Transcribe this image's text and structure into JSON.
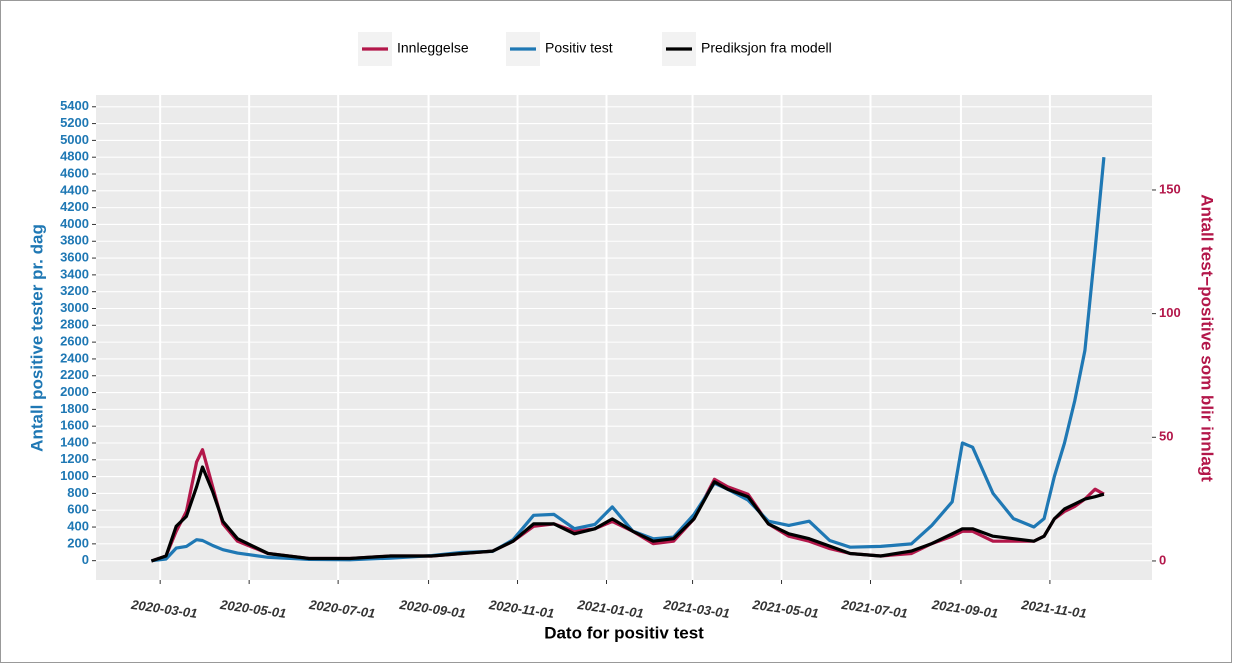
{
  "chart_data": {
    "type": "line",
    "x_label": "Dato for positiv test",
    "y_label": "Antall positive tester pr. dag",
    "y2_label": "Antall test−positive som blir innlagt",
    "legend": "top",
    "grid": true,
    "x": [
      "2020-02-24",
      "2020-03-05",
      "2020-03-12",
      "2020-03-19",
      "2020-03-26",
      "2020-03-30",
      "2020-04-06",
      "2020-04-13",
      "2020-04-23",
      "2020-05-14",
      "2020-06-11",
      "2020-07-09",
      "2020-08-06",
      "2020-09-03",
      "2020-09-24",
      "2020-10-15",
      "2020-10-29",
      "2020-11-12",
      "2020-11-26",
      "2020-12-10",
      "2020-12-24",
      "2021-01-05",
      "2021-01-19",
      "2021-02-02",
      "2021-02-16",
      "2021-03-02",
      "2021-03-16",
      "2021-03-25",
      "2021-04-08",
      "2021-04-22",
      "2021-05-06",
      "2021-05-20",
      "2021-06-03",
      "2021-06-17",
      "2021-07-08",
      "2021-07-29",
      "2021-08-12",
      "2021-08-26",
      "2021-09-02",
      "2021-09-09",
      "2021-09-23",
      "2021-10-07",
      "2021-10-21",
      "2021-10-28",
      "2021-11-04",
      "2021-11-11",
      "2021-11-18",
      "2021-11-25",
      "2021-12-02",
      "2021-12-08"
    ],
    "xlim": [
      "2020-01-17",
      "2022-01-10"
    ],
    "xticks": [
      "2020-03-01",
      "2020-05-01",
      "2020-07-01",
      "2020-09-01",
      "2020-11-01",
      "2021-01-01",
      "2021-03-01",
      "2021-05-01",
      "2021-07-01",
      "2021-09-01",
      "2021-11-01"
    ],
    "ylim": [
      -230,
      5540
    ],
    "yticks": [
      0,
      200,
      400,
      600,
      800,
      1000,
      1200,
      1400,
      1600,
      1800,
      2000,
      2200,
      2400,
      2600,
      2800,
      3000,
      3200,
      3400,
      3600,
      3800,
      4000,
      4200,
      4400,
      4600,
      4800,
      5000,
      5200,
      5400
    ],
    "y2lim": [
      -7.7,
      188.4
    ],
    "y2ticks": [
      0,
      50,
      100,
      150
    ],
    "series": [
      {
        "name": "Innleggelse",
        "color": "#b3174a",
        "axis": "y2",
        "values": [
          0,
          2,
          12,
          20,
          40,
          45,
          30,
          15,
          8,
          3,
          1,
          1,
          2,
          2,
          3,
          4,
          8,
          14,
          15,
          12,
          13,
          16,
          12,
          7,
          8,
          17,
          33,
          30,
          27,
          15,
          10,
          8,
          5,
          3,
          2,
          3,
          7,
          10,
          12,
          12,
          8,
          8,
          8,
          10,
          17,
          20,
          22,
          25,
          29,
          27
        ]
      },
      {
        "name": "Positiv test",
        "color": "#1f78b4",
        "values": [
          0,
          20,
          150,
          170,
          250,
          240,
          180,
          130,
          90,
          40,
          15,
          10,
          30,
          60,
          100,
          110,
          250,
          540,
          550,
          380,
          430,
          640,
          350,
          260,
          280,
          550,
          920,
          850,
          720,
          470,
          420,
          470,
          240,
          160,
          170,
          200,
          420,
          700,
          1400,
          1350,
          800,
          500,
          400,
          500,
          1000,
          1400,
          1900,
          2500,
          3700,
          4800
        ]
      },
      {
        "name": "Prediksjon fra modell",
        "color": "#000000",
        "axis": "y2",
        "values": [
          0,
          2,
          14,
          18,
          30,
          38,
          28,
          16,
          9,
          3,
          1,
          1,
          2,
          2,
          3,
          4,
          8,
          15,
          15,
          11,
          13,
          17,
          12,
          8,
          9,
          17,
          32,
          29,
          26,
          15,
          11,
          9,
          6,
          3,
          2,
          4,
          7,
          11,
          13,
          13,
          10,
          9,
          8,
          10,
          17,
          21,
          23,
          25,
          26,
          27
        ]
      }
    ]
  }
}
